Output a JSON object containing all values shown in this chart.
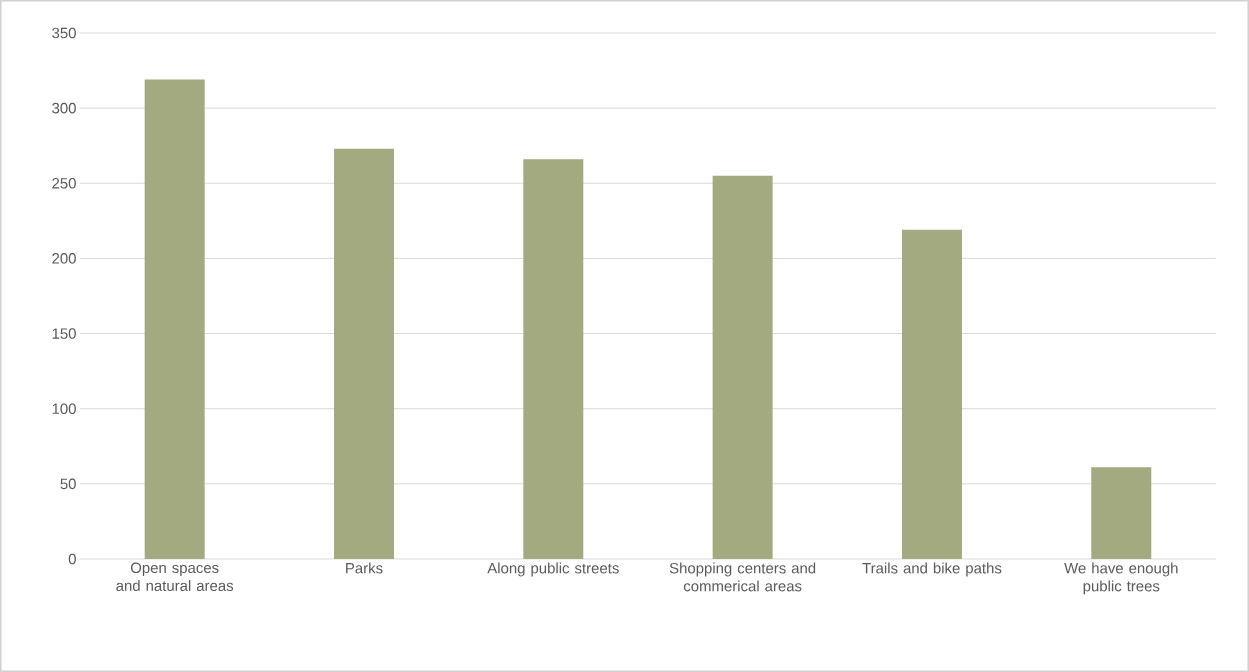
{
  "chart_data": {
    "type": "bar",
    "categories": [
      "Open spaces and natural areas",
      "Parks",
      "Along public streets",
      "Shopping centers and commerical areas",
      "Trails and bike paths",
      "We have enough public trees"
    ],
    "values": [
      319,
      273,
      266,
      255,
      219,
      61
    ],
    "color": "#a3aa7f",
    "ylim": [
      0,
      350
    ],
    "yticks": [
      0,
      50,
      100,
      150,
      200,
      250,
      300,
      350
    ],
    "grid": "y"
  }
}
